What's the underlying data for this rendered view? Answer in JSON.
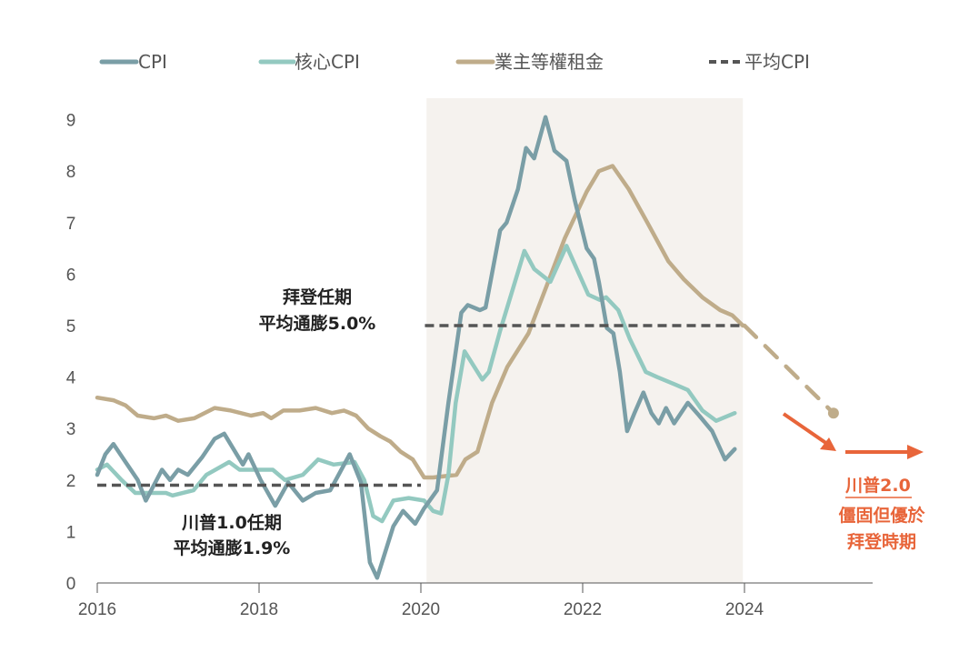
{
  "chart_data": {
    "type": "line",
    "title": "",
    "xlabel": "",
    "ylabel": "",
    "xlim": [
      2016,
      2024
    ],
    "ylim": [
      0,
      9
    ],
    "x_ticks": [
      "2016",
      "2018",
      "2020",
      "2022",
      "2024"
    ],
    "y_ticks": [
      "0",
      "1",
      "2",
      "3",
      "4",
      "5",
      "6",
      "7",
      "8",
      "9"
    ],
    "grid": false,
    "legend_position": "top",
    "shaded_period": {
      "from": 2020.07,
      "to": 2023.98
    },
    "series": [
      {
        "name": "CPI",
        "color": "#7A9EA6",
        "style": "solid",
        "points": [
          [
            2016.0,
            2.1
          ],
          [
            2016.1,
            2.5
          ],
          [
            2016.2,
            2.7
          ],
          [
            2016.35,
            2.35
          ],
          [
            2016.5,
            2.0
          ],
          [
            2016.6,
            1.6
          ],
          [
            2016.8,
            2.2
          ],
          [
            2016.9,
            2.0
          ],
          [
            2017.0,
            2.2
          ],
          [
            2017.12,
            2.1
          ],
          [
            2017.3,
            2.45
          ],
          [
            2017.45,
            2.8
          ],
          [
            2017.57,
            2.9
          ],
          [
            2017.8,
            2.3
          ],
          [
            2017.87,
            2.5
          ],
          [
            2018.02,
            2.0
          ],
          [
            2018.2,
            1.5
          ],
          [
            2018.36,
            1.95
          ],
          [
            2018.54,
            1.6
          ],
          [
            2018.7,
            1.75
          ],
          [
            2018.88,
            1.8
          ],
          [
            2019.12,
            2.5
          ],
          [
            2019.26,
            1.95
          ],
          [
            2019.37,
            0.4
          ],
          [
            2019.46,
            0.1
          ],
          [
            2019.66,
            1.1
          ],
          [
            2019.78,
            1.4
          ],
          [
            2019.93,
            1.15
          ],
          [
            2020.04,
            1.45
          ],
          [
            2020.2,
            1.8
          ],
          [
            2020.34,
            3.5
          ],
          [
            2020.5,
            5.25
          ],
          [
            2020.58,
            5.4
          ],
          [
            2020.73,
            5.3
          ],
          [
            2020.8,
            5.35
          ],
          [
            2020.98,
            6.85
          ],
          [
            2021.06,
            7.0
          ],
          [
            2021.2,
            7.65
          ],
          [
            2021.3,
            8.45
          ],
          [
            2021.4,
            8.25
          ],
          [
            2021.54,
            9.05
          ],
          [
            2021.65,
            8.4
          ],
          [
            2021.8,
            8.2
          ],
          [
            2021.9,
            7.45
          ],
          [
            2022.05,
            6.5
          ],
          [
            2022.14,
            6.3
          ],
          [
            2022.2,
            5.85
          ],
          [
            2022.3,
            4.95
          ],
          [
            2022.38,
            4.85
          ],
          [
            2022.46,
            4.1
          ],
          [
            2022.55,
            2.95
          ],
          [
            2022.64,
            3.3
          ],
          [
            2022.75,
            3.7
          ],
          [
            2022.85,
            3.3
          ],
          [
            2022.94,
            3.1
          ],
          [
            2023.03,
            3.4
          ],
          [
            2023.13,
            3.1
          ],
          [
            2023.3,
            3.5
          ],
          [
            2023.44,
            3.25
          ],
          [
            2023.6,
            2.95
          ],
          [
            2023.76,
            2.4
          ],
          [
            2023.88,
            2.6
          ]
        ]
      },
      {
        "name": "核心CPI",
        "color": "#93C9C0",
        "style": "solid",
        "points": [
          [
            2016.0,
            2.2
          ],
          [
            2016.12,
            2.3
          ],
          [
            2016.3,
            2.0
          ],
          [
            2016.47,
            1.75
          ],
          [
            2016.85,
            1.75
          ],
          [
            2016.93,
            1.7
          ],
          [
            2017.19,
            1.8
          ],
          [
            2017.35,
            2.1
          ],
          [
            2017.63,
            2.35
          ],
          [
            2017.76,
            2.2
          ],
          [
            2017.95,
            2.2
          ],
          [
            2018.17,
            2.2
          ],
          [
            2018.32,
            2.0
          ],
          [
            2018.54,
            2.1
          ],
          [
            2018.73,
            2.4
          ],
          [
            2018.92,
            2.3
          ],
          [
            2019.18,
            2.35
          ],
          [
            2019.3,
            2.0
          ],
          [
            2019.41,
            1.3
          ],
          [
            2019.52,
            1.2
          ],
          [
            2019.66,
            1.6
          ],
          [
            2019.85,
            1.65
          ],
          [
            2020.04,
            1.6
          ],
          [
            2020.15,
            1.4
          ],
          [
            2020.25,
            1.35
          ],
          [
            2020.34,
            2.1
          ],
          [
            2020.43,
            3.5
          ],
          [
            2020.54,
            4.5
          ],
          [
            2020.76,
            3.95
          ],
          [
            2020.84,
            4.1
          ],
          [
            2020.98,
            4.9
          ],
          [
            2021.28,
            6.45
          ],
          [
            2021.4,
            6.1
          ],
          [
            2021.6,
            5.85
          ],
          [
            2021.8,
            6.55
          ],
          [
            2022.07,
            5.6
          ],
          [
            2022.21,
            5.5
          ],
          [
            2022.29,
            5.55
          ],
          [
            2022.44,
            5.3
          ],
          [
            2022.58,
            4.75
          ],
          [
            2022.78,
            4.1
          ],
          [
            2022.92,
            4.0
          ],
          [
            2023.15,
            3.85
          ],
          [
            2023.3,
            3.75
          ],
          [
            2023.48,
            3.35
          ],
          [
            2023.65,
            3.15
          ],
          [
            2023.88,
            3.3
          ]
        ]
      },
      {
        "name": "業主等權租金",
        "color": "#BFAC8A",
        "style": "solid",
        "points": [
          [
            2016.0,
            3.6
          ],
          [
            2016.2,
            3.55
          ],
          [
            2016.35,
            3.45
          ],
          [
            2016.5,
            3.25
          ],
          [
            2016.7,
            3.2
          ],
          [
            2016.85,
            3.25
          ],
          [
            2017.0,
            3.15
          ],
          [
            2017.2,
            3.2
          ],
          [
            2017.45,
            3.4
          ],
          [
            2017.65,
            3.35
          ],
          [
            2017.9,
            3.25
          ],
          [
            2018.05,
            3.3
          ],
          [
            2018.15,
            3.2
          ],
          [
            2018.3,
            3.35
          ],
          [
            2018.5,
            3.35
          ],
          [
            2018.7,
            3.4
          ],
          [
            2018.9,
            3.3
          ],
          [
            2019.05,
            3.35
          ],
          [
            2019.2,
            3.25
          ],
          [
            2019.35,
            3.0
          ],
          [
            2019.5,
            2.85
          ],
          [
            2019.62,
            2.75
          ],
          [
            2019.75,
            2.55
          ],
          [
            2019.9,
            2.4
          ],
          [
            2020.04,
            2.05
          ],
          [
            2020.15,
            2.05
          ],
          [
            2020.44,
            2.1
          ],
          [
            2020.55,
            2.4
          ],
          [
            2020.7,
            2.55
          ],
          [
            2020.88,
            3.5
          ],
          [
            2021.07,
            4.2
          ],
          [
            2021.33,
            4.85
          ],
          [
            2021.55,
            5.75
          ],
          [
            2021.78,
            6.7
          ],
          [
            2022.05,
            7.6
          ],
          [
            2022.2,
            8.0
          ],
          [
            2022.37,
            8.1
          ],
          [
            2022.57,
            7.65
          ],
          [
            2022.8,
            7.0
          ],
          [
            2023.06,
            6.25
          ],
          [
            2023.25,
            5.9
          ],
          [
            2023.48,
            5.55
          ],
          [
            2023.7,
            5.3
          ],
          [
            2023.85,
            5.2
          ],
          [
            2023.98,
            5.0
          ]
        ]
      },
      {
        "name": "平均CPI",
        "color": "#555555",
        "style": "dashed",
        "segments": [
          {
            "from": 2016.0,
            "to": 2020.0,
            "value": 1.9
          },
          {
            "from": 2020.05,
            "to": 2024.0,
            "value": 5.0
          }
        ]
      }
    ],
    "projection": {
      "series": "業主等權租金",
      "points": [
        [
          2024.0,
          5.0
        ],
        [
          2025.1,
          3.3
        ]
      ]
    },
    "annotations": {
      "trump1": [
        "川普1.0任期",
        "平均通膨1.9%"
      ],
      "biden": [
        "拜登任期",
        "平均通膨5.0%"
      ],
      "trump2": [
        "川普2.0",
        "僵固但優於",
        "拜登時期"
      ]
    },
    "accent_color": "#E8653A"
  }
}
